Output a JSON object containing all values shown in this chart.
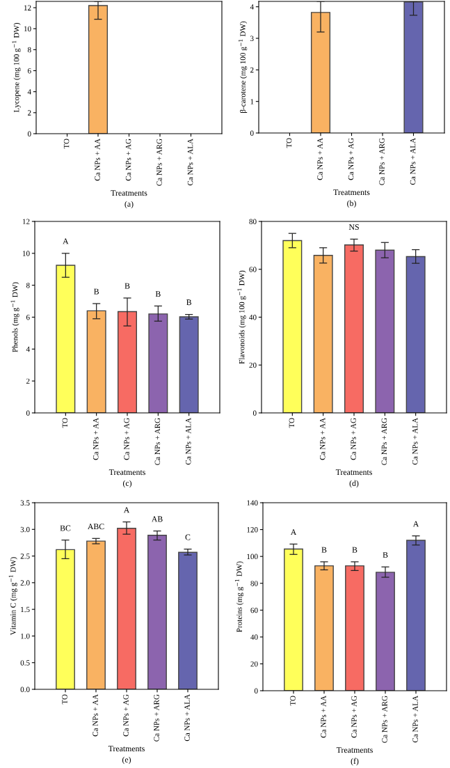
{
  "chart_data": [
    {
      "type": "bar",
      "ylabel": "Lycopene (mg 100 g$^{−1}$ DW)",
      "xlabel": "Treatments",
      "categories": [
        "TO",
        "Ca NPs + AA",
        "Ca NPs + AG",
        "Ca NPs + ARG",
        "Ca NPs + ALA"
      ],
      "values": [
        null,
        12.2,
        null,
        null,
        null
      ],
      "colors": [
        "#ffff5a",
        "#f9b262",
        "#f76b63",
        "#8c64ae",
        "#6565ae"
      ],
      "errors": [
        null,
        [
          10.9,
          12.6
        ],
        null,
        null,
        null
      ],
      "ylim": [
        0,
        12.6
      ],
      "yticks": [
        0,
        2,
        4,
        6,
        8,
        10,
        12
      ],
      "annotations": [
        "(a)"
      ]
    },
    {
      "type": "bar",
      "ylabel": "β-carotene (mg 100 g$^{−1}$ DW)",
      "xlabel": "Treatments",
      "categories": [
        "TO",
        "Ca NPs + AA",
        "Ca NPs + AG",
        "Ca NPs + ARG",
        "Ca NPs + ALA"
      ],
      "values": [
        null,
        3.82,
        null,
        null,
        4.15
      ],
      "colors": [
        "#ffff5a",
        "#f9b262",
        "#f76b63",
        "#8c64ae",
        "#6565ae"
      ],
      "errors": [
        null,
        [
          3.2,
          4.17
        ],
        null,
        null,
        [
          3.73,
          4.17
        ]
      ],
      "ylim": [
        0,
        4.17
      ],
      "yticks": [
        0,
        1,
        2,
        3,
        4
      ],
      "annotations": [
        "(b)"
      ]
    },
    {
      "type": "bar",
      "ylabel": "Phenols (mg g$^{−1}$ DW)",
      "xlabel": "Treatments",
      "categories": [
        "TO",
        "Ca NPs + AA",
        "Ca NPs + AG",
        "Ca NPs + ARG",
        "Ca NPs + ALA"
      ],
      "values": [
        9.25,
        6.4,
        6.35,
        6.2,
        6.02
      ],
      "colors": [
        "#ffff5a",
        "#f9b262",
        "#f76b63",
        "#8c64ae",
        "#6565ae"
      ],
      "errors": [
        [
          8.5,
          10.0
        ],
        [
          5.9,
          6.85
        ],
        [
          5.45,
          7.2
        ],
        [
          5.75,
          6.7
        ],
        [
          5.88,
          6.17
        ]
      ],
      "value_labels": [
        "A",
        "B",
        "B",
        "B",
        "B"
      ],
      "ylim": [
        0,
        12
      ],
      "yticks": [
        0,
        2,
        4,
        6,
        8,
        10,
        12
      ],
      "annotations": [
        "(c)"
      ]
    },
    {
      "type": "bar",
      "ylabel": "Flavonoids (mg 100 g$^{−1}$ DW)",
      "xlabel": "Treatments",
      "categories": [
        "TO",
        "Ca NPs + AA",
        "Ca NPs + AG",
        "Ca NPs + ARG",
        "Ca NPs + ALA"
      ],
      "values": [
        72,
        65.8,
        70.2,
        68,
        65.3
      ],
      "colors": [
        "#ffff5a",
        "#f9b262",
        "#f76b63",
        "#8c64ae",
        "#6565ae"
      ],
      "errors": [
        [
          69,
          75
        ],
        [
          62.6,
          69
        ],
        [
          67.6,
          72.6
        ],
        [
          64.8,
          71.2
        ],
        [
          62.5,
          68.2
        ]
      ],
      "value_labels": [
        null,
        null,
        "NS",
        null,
        null
      ],
      "ylim": [
        0,
        80
      ],
      "yticks": [
        0,
        20,
        40,
        60,
        80
      ],
      "annotations": [
        "(d)"
      ]
    },
    {
      "type": "bar",
      "ylabel": "Vitamin C (mg g$^{−1}$ DW)",
      "xlabel": "Treatments",
      "categories": [
        "TO",
        "Ca NPs + AA",
        "Ca NPs + AG",
        "Ca NPs + ARG",
        "Ca NPs + ALA"
      ],
      "values": [
        2.62,
        2.78,
        3.02,
        2.89,
        2.57
      ],
      "colors": [
        "#ffff5a",
        "#f9b262",
        "#f76b63",
        "#8c64ae",
        "#6565ae"
      ],
      "errors": [
        [
          2.45,
          2.8
        ],
        [
          2.73,
          2.83
        ],
        [
          2.91,
          3.14
        ],
        [
          2.8,
          2.97
        ],
        [
          2.52,
          2.63
        ]
      ],
      "value_labels": [
        "BC",
        "ABC",
        "A",
        "AB",
        "C"
      ],
      "ylim": [
        0,
        3.5
      ],
      "yticks": [
        {
          "value": 0,
          "label": "0.0"
        },
        {
          "value": 0.5,
          "label": "0.5"
        },
        {
          "value": 1,
          "label": "1.0"
        },
        {
          "value": 1.5,
          "label": "1.5"
        },
        {
          "value": 2,
          "label": "2.0"
        },
        {
          "value": 2.5,
          "label": "2.5"
        },
        {
          "value": 3,
          "label": "3.0"
        },
        {
          "value": 3.5,
          "label": "3.5"
        }
      ],
      "annotations": [
        "(e)"
      ]
    },
    {
      "type": "bar",
      "ylabel": "Proteins (mg g$^{−1}$ DW)",
      "xlabel": "Treatments",
      "categories": [
        "TO",
        "Ca NPs + AA",
        "Ca NPs + AG",
        "Ca NPs + ARG",
        "Ca NPs + ALA"
      ],
      "values": [
        105.5,
        93,
        93,
        88.2,
        112
      ],
      "colors": [
        "#ffff5a",
        "#f9b262",
        "#f76b63",
        "#8c64ae",
        "#6565ae"
      ],
      "errors": [
        [
          101.5,
          109.2
        ],
        [
          90,
          96
        ],
        [
          89.5,
          96
        ],
        [
          84.5,
          92.2
        ],
        [
          108.5,
          115.3
        ]
      ],
      "value_labels": [
        "A",
        "B",
        "B",
        "B",
        "A"
      ],
      "ylim": [
        0,
        140
      ],
      "yticks": [
        0,
        20,
        40,
        60,
        80,
        100,
        120,
        140
      ],
      "annotations": [
        "(f)"
      ]
    }
  ]
}
